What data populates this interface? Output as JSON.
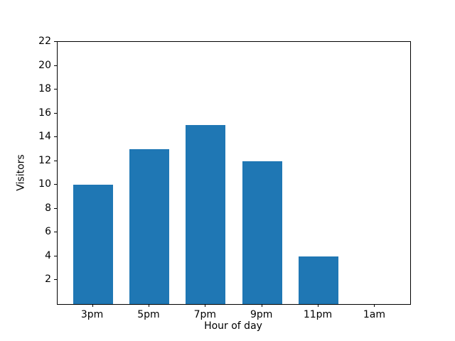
{
  "chart_data": {
    "type": "bar",
    "title": "",
    "xlabel": "Hour of day",
    "ylabel": "Visitors",
    "categories": [
      "3pm",
      "5pm",
      "7pm",
      "9pm",
      "11pm",
      "1am"
    ],
    "values": [
      10,
      13,
      15,
      12,
      4,
      0
    ],
    "ylim": [
      0,
      22
    ],
    "yticks": [
      2,
      4,
      6,
      8,
      10,
      12,
      14,
      16,
      18,
      20,
      22
    ],
    "bar_color": "#1f77b4",
    "spine_color": "#000000",
    "grid": false,
    "legend_position": "none"
  }
}
